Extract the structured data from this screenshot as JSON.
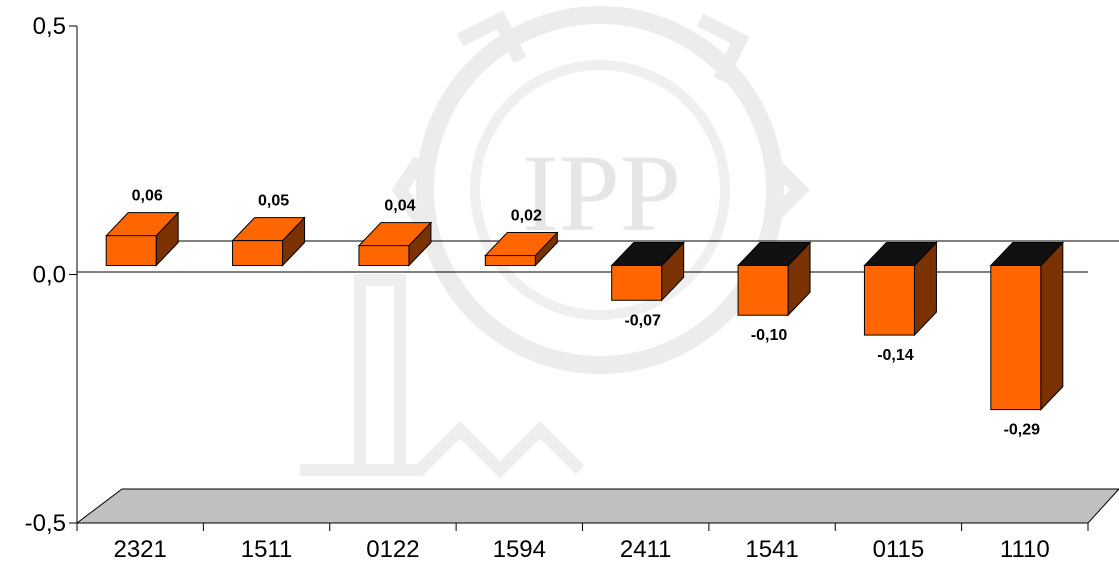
{
  "chart_data": {
    "type": "bar",
    "categories": [
      "2321",
      "1511",
      "0122",
      "1594",
      "2411",
      "1541",
      "0115",
      "1110"
    ],
    "values": [
      0.06,
      0.05,
      0.04,
      0.02,
      -0.07,
      -0.1,
      -0.14,
      -0.29
    ],
    "data_labels": [
      "0,06",
      "0,05",
      "0,04",
      "0,02",
      "-0,07",
      "-0,10",
      "-0,14",
      "-0,29"
    ],
    "y_ticks": [
      "0,5",
      "0,0",
      "-0,5"
    ],
    "y_tick_values": [
      0.5,
      0.0,
      -0.5
    ],
    "ylim": [
      -0.5,
      0.5
    ],
    "title": "",
    "xlabel": "",
    "ylabel": "",
    "bar_front_color": "#ff6600",
    "bar_side_color": "#7a3300",
    "floor_color": "#c0c0c0",
    "grid": false,
    "legend": "none",
    "watermark_text": "IPP"
  }
}
